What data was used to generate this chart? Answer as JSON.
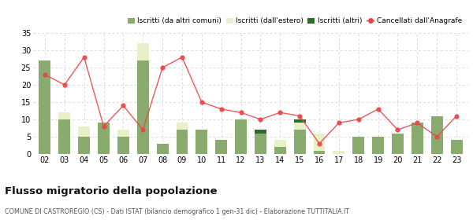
{
  "years": [
    "02",
    "03",
    "04",
    "05",
    "06",
    "07",
    "08",
    "09",
    "10",
    "11",
    "12",
    "13",
    "14",
    "15",
    "16",
    "17",
    "18",
    "19",
    "20",
    "21",
    "22",
    "23"
  ],
  "iscritti_altri_comuni": [
    27,
    10,
    5,
    9,
    5,
    27,
    3,
    7,
    7,
    4,
    10,
    6,
    2,
    7,
    1,
    0,
    5,
    5,
    6,
    9,
    11,
    4
  ],
  "iscritti_estero": [
    0,
    2,
    3,
    0,
    2,
    5,
    0,
    2,
    0,
    0,
    0,
    0,
    2,
    2,
    5,
    1,
    0,
    0,
    0,
    0,
    0,
    0
  ],
  "iscritti_altri": [
    0,
    0,
    0,
    0,
    0,
    0,
    0,
    0,
    0,
    0,
    0,
    1,
    0,
    1,
    0,
    0,
    0,
    0,
    0,
    0,
    0,
    0
  ],
  "cancellati": [
    23,
    20,
    28,
    8,
    14,
    7,
    25,
    28,
    15,
    13,
    12,
    10,
    12,
    11,
    3,
    9,
    10,
    13,
    7,
    9,
    5,
    11
  ],
  "color_altri_comuni": "#8aab6e",
  "color_estero": "#e8f0c8",
  "color_altri": "#2d6a2d",
  "color_cancellati": "#e8474a",
  "title": "Flusso migratorio della popolazione",
  "subtitle": "COMUNE DI CASTROREGIO (CS) - Dati ISTAT (bilancio demografico 1 gen-31 dic) - Elaborazione TUTTITALIA.IT",
  "legend_labels": [
    "Iscritti (da altri comuni)",
    "Iscritti (dall'estero)",
    "Iscritti (altri)",
    "Cancellati dall'Anagrafe"
  ],
  "ylim": [
    0,
    35
  ],
  "yticks": [
    0,
    5,
    10,
    15,
    20,
    25,
    30,
    35
  ],
  "bg_color": "#ffffff",
  "grid_color": "#cccccc"
}
